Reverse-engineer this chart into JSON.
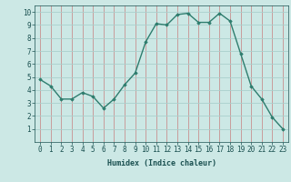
{
  "x": [
    0,
    1,
    2,
    3,
    4,
    5,
    6,
    7,
    8,
    9,
    10,
    11,
    12,
    13,
    14,
    15,
    16,
    17,
    18,
    19,
    20,
    21,
    22,
    23
  ],
  "y": [
    4.8,
    4.3,
    3.3,
    3.3,
    3.8,
    3.5,
    2.6,
    3.3,
    4.4,
    5.3,
    7.7,
    9.1,
    9.0,
    9.8,
    9.9,
    9.2,
    9.2,
    9.9,
    9.3,
    6.8,
    4.3,
    3.3,
    1.9,
    1.0
  ],
  "line_color": "#2e7d6e",
  "marker": "D",
  "marker_size": 1.8,
  "background_color": "#cce8e5",
  "grid_color": "#aad0cc",
  "grid_red_color": "#cc8888",
  "xlabel": "Humidex (Indice chaleur)",
  "ylim": [
    0,
    10.5
  ],
  "xlim": [
    -0.5,
    23.5
  ],
  "yticks": [
    1,
    2,
    3,
    4,
    5,
    6,
    7,
    8,
    9,
    10
  ],
  "xticks": [
    0,
    1,
    2,
    3,
    4,
    5,
    6,
    7,
    8,
    9,
    10,
    11,
    12,
    13,
    14,
    15,
    16,
    17,
    18,
    19,
    20,
    21,
    22,
    23
  ],
  "tick_color": "#1a5050",
  "font_color": "#1a5050",
  "xlabel_fontsize": 6.0,
  "tick_fontsize": 5.5,
  "line_width": 1.0
}
